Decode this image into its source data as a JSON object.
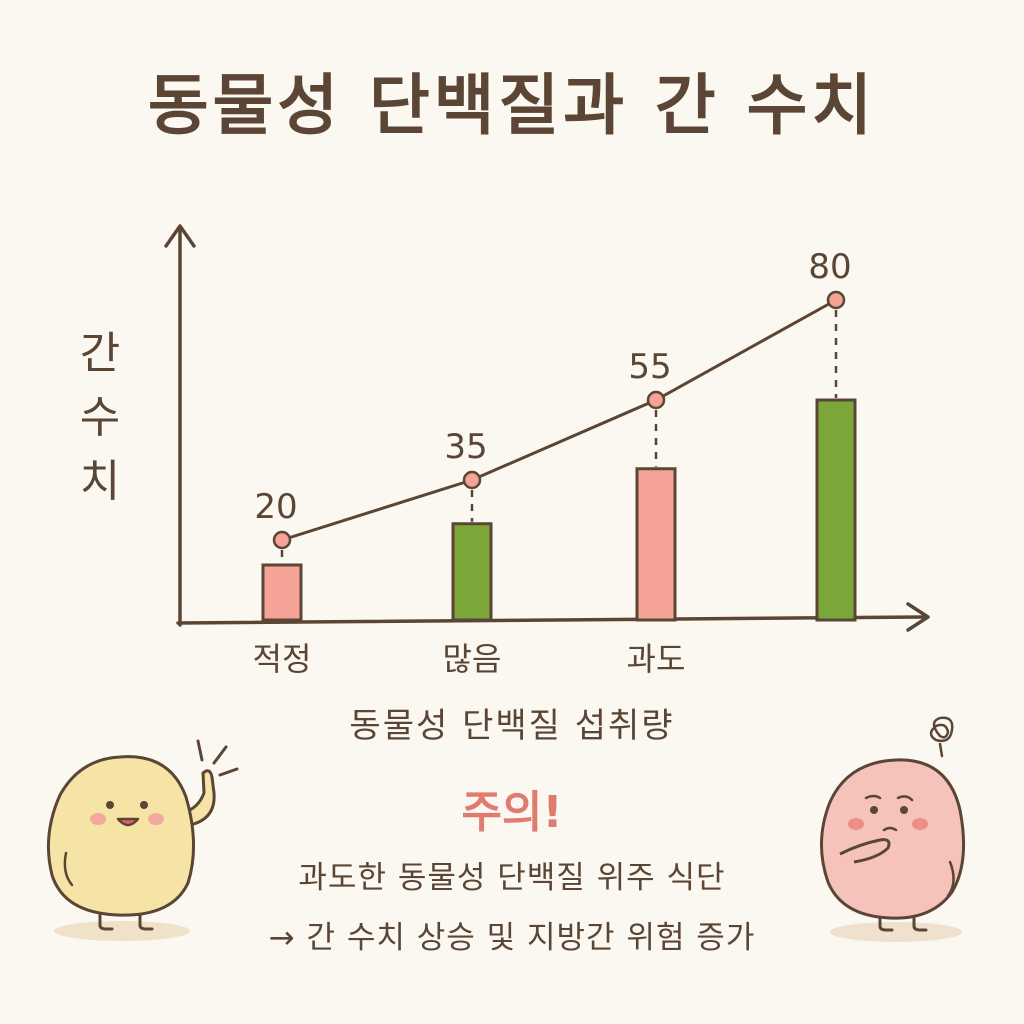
{
  "title": "동물성 단백질과 간 수치",
  "chart_data": {
    "type": "bar",
    "title": "동물성 단백질과 간 수치",
    "ylabel": "간 수치",
    "xlabel": "동물성 단백질 섭취량",
    "categories": [
      "적정",
      "많음",
      "과도",
      ""
    ],
    "values": [
      20,
      35,
      55,
      80
    ],
    "line_overlay": true,
    "bar_colors": [
      "#f4a396",
      "#7aa63a",
      "#f4a396",
      "#7aa63a"
    ],
    "ylim": [
      0,
      100
    ],
    "grid": false
  },
  "warning": {
    "title": "주의!",
    "line1": "과도한 동물성 단백질 위주 식단",
    "line2": "→ 간 수치 상승 및 지방간 위험 증가"
  },
  "colors": {
    "pink": "#f4a396",
    "green": "#7aa63a",
    "ink": "#5b4535",
    "accent": "#e07b6f"
  },
  "characters": {
    "left": "happy-potato-character",
    "right": "worried-pink-character"
  }
}
